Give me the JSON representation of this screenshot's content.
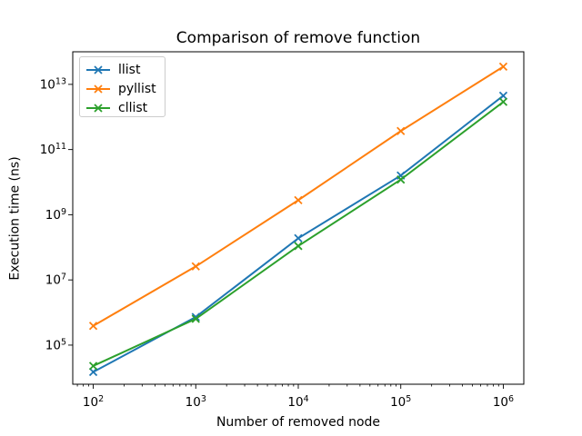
{
  "chart_data": {
    "type": "line",
    "title": "Comparison of remove function",
    "xlabel": "Number of removed node",
    "ylabel": "Execution time (ns)",
    "xscale": "log",
    "yscale": "log",
    "grid": false,
    "legend_position": "upper left",
    "xlim": [
      63.1,
      1585000
    ],
    "ylim": [
      6310,
      100000000000000.0
    ],
    "x": [
      100,
      1000,
      10000,
      100000,
      1000000
    ],
    "series": [
      {
        "name": "llist",
        "color": "#1f77b4",
        "marker": "x",
        "values": [
          15000.0,
          730000.0,
          190000000.0,
          16000000000.0,
          4500000000000.0
        ]
      },
      {
        "name": "pyllist",
        "color": "#ff7f0e",
        "marker": "x",
        "values": [
          390000.0,
          26000000.0,
          2800000000.0,
          370000000000.0,
          35000000000000.0
        ]
      },
      {
        "name": "cllist",
        "color": "#2ca02c",
        "marker": "x",
        "values": [
          23000.0,
          640000.0,
          110000000.0,
          12000000000.0,
          2900000000000.0
        ]
      }
    ],
    "xticks": [
      {
        "base": "10",
        "exp": "2",
        "value": 100
      },
      {
        "base": "10",
        "exp": "3",
        "value": 1000
      },
      {
        "base": "10",
        "exp": "4",
        "value": 10000
      },
      {
        "base": "10",
        "exp": "5",
        "value": 100000
      },
      {
        "base": "10",
        "exp": "6",
        "value": 1000000
      }
    ],
    "yticks": [
      {
        "base": "10",
        "exp": "5",
        "value": 100000.0
      },
      {
        "base": "10",
        "exp": "7",
        "value": 10000000.0
      },
      {
        "base": "10",
        "exp": "9",
        "value": 1000000000.0
      },
      {
        "base": "10",
        "exp": "11",
        "value": 100000000000.0
      },
      {
        "base": "10",
        "exp": "13",
        "value": 10000000000000.0
      }
    ],
    "axis_color": "#000000"
  }
}
